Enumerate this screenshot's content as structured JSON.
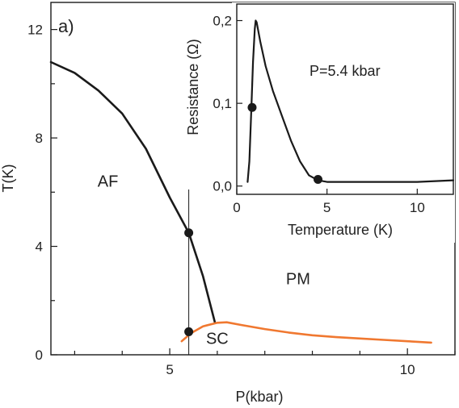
{
  "chart_data": [
    {
      "type": "line",
      "panel_label": "a)",
      "xlabel": "P(kbar)",
      "ylabel": "T(K)",
      "xlim": [
        2.5,
        11.0
      ],
      "ylim": [
        0,
        13.0
      ],
      "xticks": [
        5,
        10
      ],
      "yticks": [
        0,
        4,
        8,
        12
      ],
      "x_minor_step": 1,
      "y_minor_step": 2,
      "grid": false,
      "region_labels": [
        {
          "text": "AF",
          "x": 3.7,
          "y": 6.2
        },
        {
          "text": "PM",
          "x": 7.7,
          "y": 2.6
        },
        {
          "text": "SC",
          "x": 6.0,
          "y": 0.4
        }
      ],
      "series": [
        {
          "key": "af_boundary",
          "color": "#1a1a1a",
          "x": [
            2.5,
            3.0,
            3.5,
            4.0,
            4.5,
            5.0,
            5.4,
            5.7,
            5.95
          ],
          "y": [
            10.8,
            10.4,
            9.75,
            8.9,
            7.6,
            5.8,
            4.5,
            2.9,
            1.2
          ]
        },
        {
          "key": "sc_boundary",
          "color": "#f07830",
          "x": [
            5.25,
            5.45,
            5.7,
            6.0,
            6.2,
            6.5,
            7.0,
            7.5,
            8.0,
            8.5,
            9.0,
            9.5,
            10.0,
            10.5
          ],
          "y": [
            0.5,
            0.8,
            1.05,
            1.18,
            1.2,
            1.1,
            0.95,
            0.82,
            0.72,
            0.65,
            0.6,
            0.55,
            0.5,
            0.45
          ]
        }
      ],
      "vertical_line": {
        "x": 5.4,
        "y_from": 0.0,
        "y_to": 6.1
      },
      "markers": [
        {
          "x": 5.4,
          "y": 4.5
        },
        {
          "x": 5.4,
          "y": 0.85
        }
      ]
    },
    {
      "type": "line",
      "inset": true,
      "xlabel": "Temperature (K)",
      "ylabel": "Resistance (Ω)",
      "annotation": "P=5.4 kbar",
      "xlim": [
        0,
        12
      ],
      "ylim": [
        -0.01,
        0.22
      ],
      "xticks": [
        0,
        5,
        10
      ],
      "ytick_values": [
        0.0,
        0.1,
        0.2
      ],
      "ytick_labels": [
        "0,0",
        "0,1",
        "0,2"
      ],
      "grid": false,
      "series": [
        {
          "key": "resistance",
          "color": "#1a1a1a",
          "x": [
            0.6,
            0.7,
            0.8,
            0.9,
            1.0,
            1.05,
            1.1,
            1.3,
            1.6,
            2.0,
            2.5,
            3.0,
            3.5,
            4.0,
            4.5,
            5.0,
            6.0,
            8.0,
            10.0,
            12.0
          ],
          "y": [
            0.005,
            0.03,
            0.09,
            0.15,
            0.19,
            0.2,
            0.198,
            0.175,
            0.145,
            0.115,
            0.085,
            0.055,
            0.03,
            0.013,
            0.007,
            0.005,
            0.005,
            0.005,
            0.005,
            0.007
          ]
        }
      ],
      "markers": [
        {
          "x": 0.85,
          "y": 0.095
        },
        {
          "x": 4.5,
          "y": 0.008
        }
      ]
    }
  ]
}
